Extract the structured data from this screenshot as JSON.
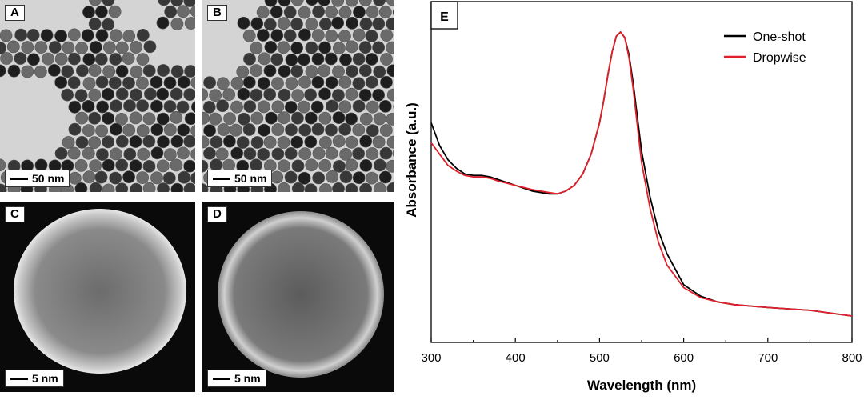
{
  "panels": [
    {
      "label": "A",
      "scale": "50 nm"
    },
    {
      "label": "B",
      "scale": "50 nm"
    },
    {
      "label": "C",
      "scale": "5 nm"
    },
    {
      "label": "D",
      "scale": "5 nm"
    }
  ],
  "colors": {
    "tem_background": "#d4d4d4",
    "particle_dark": "#383838",
    "particle_mid": "#6a6a6a",
    "stem_background": "#0a0a0a",
    "stem_particle": "#8c8c8c",
    "series_one_shot": "#000000",
    "series_dropwise": "#e0202a"
  },
  "chart_data": {
    "type": "line",
    "panel_label": "E",
    "xlabel": "Wavelength (nm)",
    "ylabel": "Absorbance (a.u.)",
    "xlim": [
      300,
      800
    ],
    "x_ticks": [
      300,
      400,
      500,
      600,
      700,
      800
    ],
    "y_ticks_shown": false,
    "grid": false,
    "legend_position": "top-right",
    "ylim": [
      0,
      1
    ],
    "series": [
      {
        "name": "One-shot",
        "color": "#000000",
        "x": [
          300,
          310,
          320,
          330,
          340,
          350,
          360,
          370,
          380,
          400,
          420,
          440,
          450,
          460,
          470,
          480,
          490,
          500,
          505,
          510,
          515,
          520,
          525,
          530,
          535,
          540,
          545,
          550,
          560,
          570,
          580,
          600,
          620,
          640,
          660,
          700,
          750,
          800
        ],
        "y": [
          0.68,
          0.6,
          0.55,
          0.52,
          0.5,
          0.495,
          0.495,
          0.49,
          0.48,
          0.46,
          0.44,
          0.43,
          0.43,
          0.44,
          0.46,
          0.5,
          0.57,
          0.68,
          0.76,
          0.85,
          0.93,
          0.985,
          1.0,
          0.98,
          0.92,
          0.82,
          0.7,
          0.58,
          0.42,
          0.3,
          0.22,
          0.11,
          0.07,
          0.05,
          0.04,
          0.03,
          0.02,
          0.0
        ]
      },
      {
        "name": "Dropwise",
        "color": "#e0202a",
        "x": [
          300,
          310,
          320,
          330,
          340,
          350,
          360,
          370,
          380,
          400,
          420,
          440,
          450,
          460,
          470,
          480,
          490,
          500,
          505,
          510,
          515,
          520,
          525,
          530,
          535,
          540,
          545,
          550,
          560,
          570,
          580,
          600,
          620,
          640,
          660,
          700,
          750,
          800
        ],
        "y": [
          0.61,
          0.57,
          0.53,
          0.51,
          0.495,
          0.49,
          0.49,
          0.485,
          0.475,
          0.46,
          0.445,
          0.435,
          0.43,
          0.44,
          0.46,
          0.5,
          0.57,
          0.68,
          0.76,
          0.85,
          0.93,
          0.985,
          1.0,
          0.98,
          0.91,
          0.8,
          0.67,
          0.54,
          0.38,
          0.26,
          0.18,
          0.1,
          0.065,
          0.05,
          0.04,
          0.03,
          0.02,
          0.0
        ]
      }
    ]
  }
}
